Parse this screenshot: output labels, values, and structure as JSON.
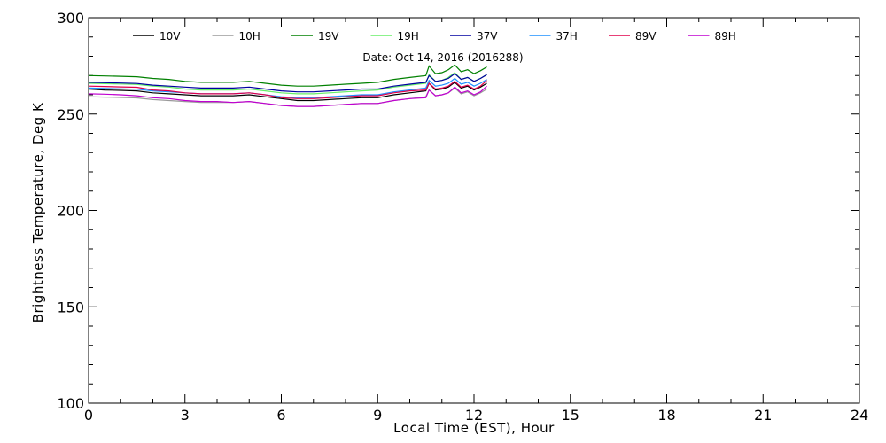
{
  "chart_data": {
    "type": "line",
    "annotation": "Date: Oct 14, 2016 (2016288)",
    "xlabel": "Local Time (EST), Hour",
    "ylabel": "Brightness Temperature, Deg K",
    "xlim": [
      0,
      24
    ],
    "ylim": [
      100,
      300
    ],
    "x_ticks": [
      0,
      3,
      6,
      9,
      12,
      15,
      18,
      21,
      24
    ],
    "x_tick_labels": [
      "0",
      "3",
      "6",
      "9",
      "12",
      "15",
      "18",
      "21",
      "24"
    ],
    "y_ticks": [
      100,
      150,
      200,
      250,
      300
    ],
    "y_tick_labels": [
      "100",
      "150",
      "200",
      "250",
      "300"
    ],
    "x_minor_step": 1,
    "y_minor_step": 10,
    "grid": false,
    "legend_placement": "top",
    "x": [
      0,
      0.5,
      1,
      1.5,
      2,
      2.5,
      3,
      3.5,
      4,
      4.5,
      5,
      5.5,
      6,
      6.5,
      7,
      7.5,
      8,
      8.5,
      9,
      9.5,
      10,
      10.5,
      10.6,
      10.8,
      11,
      11.2,
      11.4,
      11.6,
      11.8,
      12,
      12.2,
      12.4
    ],
    "series": [
      {
        "name": "10V",
        "color": "#000000",
        "values": [
          263,
          262.5,
          262.3,
          262,
          261,
          260.5,
          260,
          259.5,
          259.5,
          259.5,
          260,
          259,
          258,
          257,
          257,
          257.5,
          258,
          258.5,
          258.5,
          260,
          261,
          262,
          266,
          262.5,
          263,
          264,
          266.5,
          263.5,
          264.5,
          262.5,
          264,
          266
        ]
      },
      {
        "name": "10H",
        "color": "#9a9a9a",
        "values": [
          259,
          258.8,
          258.6,
          258.4,
          257.5,
          257,
          256.5,
          256,
          256,
          256,
          256.5,
          255.5,
          254.5,
          254,
          254,
          254.5,
          255,
          255.5,
          255.5,
          257,
          258,
          259,
          262.5,
          259.5,
          260,
          261,
          263.5,
          260.5,
          261.5,
          259.5,
          261,
          263
        ]
      },
      {
        "name": "19V",
        "color": "#008000",
        "values": [
          270,
          269.8,
          269.6,
          269.4,
          268.5,
          268,
          267,
          266.5,
          266.5,
          266.5,
          267,
          266,
          265,
          264.5,
          264.5,
          265,
          265.5,
          266,
          266.5,
          268,
          269,
          270,
          275,
          271,
          271.5,
          273,
          275.5,
          272,
          273,
          271,
          272.5,
          274.5
        ]
      },
      {
        "name": "19H",
        "color": "#66ee66",
        "values": [
          266,
          265.8,
          265.6,
          265.4,
          264.5,
          264,
          263,
          262.5,
          262.5,
          262.5,
          263,
          262,
          261,
          260.5,
          260.5,
          261,
          261.5,
          262,
          262.5,
          264,
          265,
          266,
          270.5,
          267,
          267.5,
          269,
          271.5,
          268,
          269,
          267,
          268.5,
          270.5
        ]
      },
      {
        "name": "37V",
        "color": "#0000a0",
        "values": [
          266.5,
          266.3,
          266.1,
          265.9,
          265,
          264.5,
          264,
          263.5,
          263.5,
          263.5,
          264,
          263,
          262,
          261.5,
          261.5,
          262,
          262.5,
          263,
          263,
          264.5,
          265.5,
          266.5,
          270,
          267,
          267.5,
          268.5,
          271,
          268,
          269,
          267,
          268.5,
          270.5
        ]
      },
      {
        "name": "37H",
        "color": "#1e90ff",
        "values": [
          263.5,
          263.3,
          263.1,
          262.9,
          262,
          261.5,
          261,
          260.5,
          260.5,
          260.5,
          261,
          260,
          259,
          258.5,
          258.5,
          259,
          259.5,
          260,
          260,
          261.5,
          262.5,
          263.5,
          267.5,
          264.5,
          265,
          266,
          268.5,
          265.5,
          266.5,
          264.5,
          266,
          268
        ]
      },
      {
        "name": "89V",
        "color": "#e0004b",
        "values": [
          264.5,
          264.3,
          264.1,
          263.9,
          262.5,
          262,
          261,
          260.5,
          260.5,
          260.5,
          261,
          260,
          258.5,
          258,
          258,
          258.5,
          259,
          259.5,
          259.5,
          261,
          262,
          262.5,
          266,
          263,
          263.5,
          264.5,
          267,
          264,
          265,
          263,
          264.5,
          267.5
        ]
      },
      {
        "name": "89H",
        "color": "#c000d0",
        "values": [
          260.5,
          260.3,
          260,
          259.5,
          258.5,
          258,
          257,
          256.5,
          256.5,
          256,
          256.5,
          255.5,
          254.5,
          254,
          254,
          254.5,
          255,
          255.5,
          255.5,
          257,
          258,
          258.5,
          262.5,
          259.5,
          260,
          261,
          264,
          261,
          262,
          260,
          261.5,
          264.5
        ]
      }
    ]
  }
}
